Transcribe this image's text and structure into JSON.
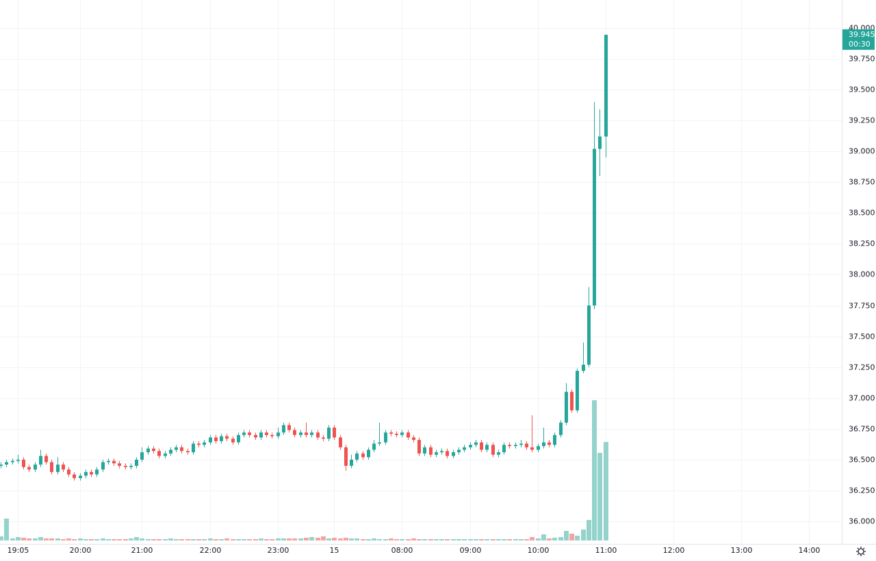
{
  "chart_data": {
    "type": "candlestick",
    "up_color": "#26a69a",
    "down_color": "#ef5350",
    "volume_up_color": "#94d3cc",
    "volume_down_color": "#f5a3a2",
    "grid": true,
    "ylim": [
      35.817,
      40.227
    ],
    "yticks": [
      {
        "value": 36,
        "label": "36.000"
      },
      {
        "value": 36.25,
        "label": "36.250"
      },
      {
        "value": 36.5,
        "label": "36.500"
      },
      {
        "value": 36.75,
        "label": "36.750"
      },
      {
        "value": 37,
        "label": "37.000"
      },
      {
        "value": 37.25,
        "label": "37.250"
      },
      {
        "value": 37.5,
        "label": "37.500"
      },
      {
        "value": 37.75,
        "label": "37.750"
      },
      {
        "value": 38,
        "label": "38.000"
      },
      {
        "value": 38.25,
        "label": "38.250"
      },
      {
        "value": 38.5,
        "label": "38.500"
      },
      {
        "value": 38.75,
        "label": "38.750"
      },
      {
        "value": 39,
        "label": "39.000"
      },
      {
        "value": 39.25,
        "label": "39.250"
      },
      {
        "value": 39.5,
        "label": "39.500"
      },
      {
        "value": 39.75,
        "label": "39.750"
      },
      {
        "value": 40,
        "label": "40.000"
      }
    ],
    "xlim": [
      -0.12,
      148.8
    ],
    "xticks": [
      {
        "value": 3,
        "label": "19:05"
      },
      {
        "value": 14,
        "label": "20:00"
      },
      {
        "value": 25,
        "label": "21:00"
      },
      {
        "value": 37,
        "label": "22:00"
      },
      {
        "value": 49,
        "label": "23:00"
      },
      {
        "value": 59,
        "label": "15"
      },
      {
        "value": 71,
        "label": "08:00"
      },
      {
        "value": 83,
        "label": "09:00"
      },
      {
        "value": 95,
        "label": "10:00"
      },
      {
        "value": 107,
        "label": "11:00"
      },
      {
        "value": 119,
        "label": "12:00"
      },
      {
        "value": 131,
        "label": "13:00"
      },
      {
        "value": 143,
        "label": "14:00"
      }
    ],
    "last_price_label": "39.945",
    "countdown": "00:30",
    "candles": [
      [
        36.45,
        36.48,
        36.43,
        36.46
      ],
      [
        36.46,
        36.5,
        36.44,
        36.48
      ],
      [
        36.48,
        36.51,
        36.46,
        36.49
      ],
      [
        36.49,
        36.54,
        36.47,
        36.5
      ],
      [
        36.5,
        36.52,
        36.42,
        36.44
      ],
      [
        36.44,
        36.46,
        36.4,
        36.42
      ],
      [
        36.42,
        36.48,
        36.4,
        36.46
      ],
      [
        36.46,
        36.58,
        36.44,
        36.53
      ],
      [
        36.53,
        36.55,
        36.46,
        36.48
      ],
      [
        36.48,
        36.5,
        36.38,
        36.4
      ],
      [
        36.4,
        36.52,
        36.38,
        36.46
      ],
      [
        36.46,
        36.48,
        36.4,
        36.42
      ],
      [
        36.42,
        36.44,
        36.36,
        36.38
      ],
      [
        36.38,
        36.4,
        36.33,
        36.35
      ],
      [
        36.35,
        36.39,
        36.33,
        36.37
      ],
      [
        36.37,
        36.42,
        36.35,
        36.4
      ],
      [
        36.4,
        36.42,
        36.36,
        36.38
      ],
      [
        36.38,
        36.44,
        36.36,
        36.42
      ],
      [
        36.42,
        36.5,
        36.4,
        36.48
      ],
      [
        36.48,
        36.51,
        36.46,
        36.49
      ],
      [
        36.49,
        36.51,
        36.45,
        36.47
      ],
      [
        36.47,
        36.49,
        36.43,
        36.45
      ],
      [
        36.45,
        36.47,
        36.42,
        36.44
      ],
      [
        36.44,
        36.47,
        36.42,
        36.45
      ],
      [
        36.45,
        36.52,
        36.43,
        36.5
      ],
      [
        36.5,
        36.6,
        36.48,
        36.56
      ],
      [
        36.56,
        36.61,
        36.54,
        36.59
      ],
      [
        36.59,
        36.61,
        36.55,
        36.57
      ],
      [
        36.57,
        36.59,
        36.51,
        36.53
      ],
      [
        36.53,
        36.57,
        36.51,
        36.55
      ],
      [
        36.55,
        36.6,
        36.53,
        36.58
      ],
      [
        36.58,
        36.62,
        36.56,
        36.6
      ],
      [
        36.6,
        36.62,
        36.55,
        36.57
      ],
      [
        36.57,
        36.59,
        36.54,
        36.56
      ],
      [
        36.56,
        36.65,
        36.54,
        36.63
      ],
      [
        36.63,
        36.65,
        36.6,
        36.62
      ],
      [
        36.62,
        36.66,
        36.6,
        36.64
      ],
      [
        36.64,
        36.7,
        36.62,
        36.68
      ],
      [
        36.68,
        36.7,
        36.63,
        36.65
      ],
      [
        36.65,
        36.71,
        36.63,
        36.69
      ],
      [
        36.69,
        36.71,
        36.65,
        36.67
      ],
      [
        36.67,
        36.69,
        36.62,
        36.64
      ],
      [
        36.64,
        36.72,
        36.62,
        36.7
      ],
      [
        36.7,
        36.74,
        36.68,
        36.72
      ],
      [
        36.72,
        36.74,
        36.68,
        36.7
      ],
      [
        36.7,
        36.72,
        36.66,
        36.68
      ],
      [
        36.68,
        36.74,
        36.66,
        36.72
      ],
      [
        36.72,
        36.74,
        36.68,
        36.7
      ],
      [
        36.7,
        36.72,
        36.67,
        36.69
      ],
      [
        36.69,
        36.76,
        36.67,
        36.72
      ],
      [
        36.72,
        36.8,
        36.7,
        36.78
      ],
      [
        36.78,
        36.8,
        36.72,
        36.74
      ],
      [
        36.74,
        36.76,
        36.68,
        36.7
      ],
      [
        36.7,
        36.74,
        36.68,
        36.72
      ],
      [
        36.72,
        36.8,
        36.68,
        36.7
      ],
      [
        36.7,
        36.74,
        36.68,
        36.72
      ],
      [
        36.72,
        36.74,
        36.66,
        36.68
      ],
      [
        36.68,
        36.7,
        36.65,
        36.67
      ],
      [
        36.67,
        36.78,
        36.65,
        36.76
      ],
      [
        36.76,
        36.78,
        36.66,
        36.68
      ],
      [
        36.68,
        36.7,
        36.58,
        36.6
      ],
      [
        36.6,
        36.62,
        36.41,
        36.45
      ],
      [
        36.45,
        36.54,
        36.43,
        36.5
      ],
      [
        36.5,
        36.57,
        36.48,
        36.55
      ],
      [
        36.55,
        36.57,
        36.5,
        36.52
      ],
      [
        36.52,
        36.6,
        36.5,
        36.58
      ],
      [
        36.58,
        36.66,
        36.56,
        36.63
      ],
      [
        36.63,
        36.8,
        36.61,
        36.64
      ],
      [
        36.64,
        36.74,
        36.62,
        36.72
      ],
      [
        36.72,
        36.74,
        36.69,
        36.71
      ],
      [
        36.71,
        36.73,
        36.68,
        36.7
      ],
      [
        36.7,
        36.74,
        36.68,
        36.72
      ],
      [
        36.72,
        36.74,
        36.66,
        36.68
      ],
      [
        36.68,
        36.7,
        36.64,
        36.66
      ],
      [
        36.66,
        36.68,
        36.53,
        36.55
      ],
      [
        36.55,
        36.62,
        36.53,
        36.6
      ],
      [
        36.6,
        36.62,
        36.52,
        36.54
      ],
      [
        36.54,
        36.58,
        36.52,
        36.56
      ],
      [
        36.56,
        36.59,
        36.54,
        36.57
      ],
      [
        36.57,
        36.59,
        36.51,
        36.53
      ],
      [
        36.53,
        36.58,
        36.51,
        36.56
      ],
      [
        36.56,
        36.6,
        36.54,
        36.58
      ],
      [
        36.58,
        36.62,
        36.56,
        36.6
      ],
      [
        36.6,
        36.64,
        36.58,
        36.62
      ],
      [
        36.62,
        36.66,
        36.6,
        36.64
      ],
      [
        36.64,
        36.66,
        36.56,
        36.58
      ],
      [
        36.58,
        36.64,
        36.56,
        36.62
      ],
      [
        36.62,
        36.64,
        36.52,
        36.54
      ],
      [
        36.54,
        36.58,
        36.52,
        36.56
      ],
      [
        36.56,
        36.64,
        36.54,
        36.62
      ],
      [
        36.62,
        36.64,
        36.59,
        36.61
      ],
      [
        36.61,
        36.64,
        36.59,
        36.62
      ],
      [
        36.62,
        36.66,
        36.6,
        36.63
      ],
      [
        36.63,
        36.65,
        36.58,
        36.6
      ],
      [
        36.6,
        36.86,
        36.56,
        36.58
      ],
      [
        36.58,
        36.63,
        36.56,
        36.61
      ],
      [
        36.61,
        36.76,
        36.59,
        36.64
      ],
      [
        36.64,
        36.66,
        36.6,
        36.62
      ],
      [
        36.62,
        36.72,
        36.6,
        36.7
      ],
      [
        36.7,
        36.82,
        36.68,
        36.8
      ],
      [
        36.8,
        37.12,
        36.78,
        37.05
      ],
      [
        37.05,
        37.07,
        36.88,
        36.9
      ],
      [
        36.9,
        37.24,
        36.88,
        37.22
      ],
      [
        37.22,
        37.45,
        37.2,
        37.27
      ],
      [
        37.27,
        37.9,
        37.25,
        37.75
      ],
      [
        37.75,
        39.4,
        37.72,
        39.02
      ],
      [
        39.02,
        39.34,
        38.8,
        39.12
      ],
      [
        39.12,
        39.945,
        38.95,
        39.945
      ]
    ],
    "volumes": [
      6,
      32,
      3,
      5,
      4,
      3,
      3,
      5,
      3,
      3,
      3,
      2,
      3,
      2,
      3,
      2,
      2,
      2,
      3,
      2,
      2,
      2,
      2,
      3,
      5,
      3,
      2,
      2,
      2,
      2,
      3,
      2,
      2,
      2,
      2,
      2,
      2,
      3,
      2,
      2,
      3,
      2,
      2,
      2,
      2,
      2,
      3,
      2,
      2,
      3,
      3,
      3,
      3,
      3,
      4,
      5,
      4,
      6,
      3,
      4,
      3,
      4,
      3,
      3,
      2,
      2,
      3,
      2,
      2,
      3,
      2,
      2,
      2,
      3,
      2,
      2,
      2,
      2,
      2,
      2,
      2,
      2,
      2,
      2,
      2,
      2,
      2,
      2,
      2,
      2,
      2,
      2,
      2,
      2,
      5,
      3,
      9,
      3,
      4,
      5,
      14,
      10,
      7,
      16,
      30,
      205,
      128,
      144
    ]
  }
}
